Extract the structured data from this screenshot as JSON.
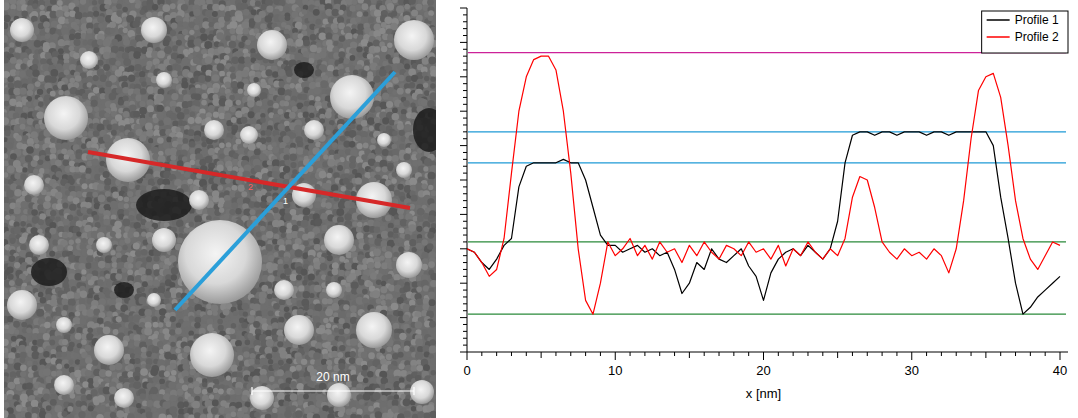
{
  "chart_data": {
    "type": "line",
    "x": [
      0,
      0.5,
      1,
      1.5,
      2,
      2.5,
      3,
      3.5,
      4,
      4.5,
      5,
      5.5,
      6,
      6.5,
      7,
      7.5,
      8,
      8.5,
      9,
      9.5,
      10,
      10.5,
      11,
      11.5,
      12,
      12.5,
      13,
      13.5,
      14,
      14.5,
      15,
      15.5,
      16,
      16.5,
      17,
      17.5,
      18,
      18.5,
      19,
      19.5,
      20,
      20.5,
      21,
      21.5,
      22,
      22.5,
      23,
      23.5,
      24,
      24.5,
      25,
      25.5,
      26,
      26.5,
      27,
      27.5,
      28,
      28.5,
      29,
      29.5,
      30,
      30.5,
      31,
      31.5,
      32,
      32.5,
      33,
      33.5,
      34,
      34.5,
      35,
      35.5,
      36,
      36.5,
      37,
      37.5,
      38,
      38.5,
      39,
      39.5,
      40
    ],
    "series": [
      {
        "name": "Profile 1",
        "color": "#000000",
        "values": [
          30,
          29,
          26,
          24,
          27,
          31,
          33,
          48,
          54,
          55,
          55,
          55,
          55,
          56,
          55,
          55,
          50,
          42,
          34,
          31,
          31,
          29,
          30,
          31,
          29,
          30,
          28,
          29,
          24,
          17,
          20,
          26,
          24,
          30,
          27,
          26,
          28,
          30,
          25,
          22,
          15,
          23,
          27,
          29,
          30,
          28,
          31,
          29,
          27,
          30,
          38,
          55,
          63,
          64,
          64,
          63,
          64,
          64,
          63,
          64,
          64,
          64,
          63,
          64,
          64,
          63,
          64,
          64,
          64,
          64,
          64,
          60,
          45,
          33,
          20,
          11,
          13,
          16,
          18,
          20,
          22
        ]
      },
      {
        "name": "Profile 2",
        "color": "#ff0000",
        "values": [
          30,
          29,
          26,
          22,
          24,
          33,
          52,
          70,
          80,
          85,
          86,
          86,
          82,
          70,
          52,
          30,
          15,
          11,
          20,
          32,
          28,
          30,
          33,
          28,
          31,
          27,
          32,
          29,
          30,
          26,
          31,
          28,
          32,
          29,
          27,
          31,
          30,
          28,
          32,
          29,
          30,
          27,
          31,
          25,
          30,
          28,
          32,
          29,
          27,
          30,
          28,
          33,
          45,
          51,
          50,
          42,
          32,
          29,
          27,
          30,
          28,
          29,
          27,
          30,
          28,
          23,
          30,
          44,
          62,
          76,
          80,
          81,
          74,
          60,
          44,
          33,
          27,
          24,
          28,
          32,
          31
        ]
      }
    ],
    "xlim": [
      0,
      40
    ],
    "xticks": [
      0,
      10,
      20,
      30,
      40
    ],
    "x_label": "x [nm]",
    "ylim": [
      0,
      100
    ],
    "yticks": [
      0,
      10,
      20,
      30,
      40,
      50,
      60,
      70,
      80,
      90,
      100
    ],
    "tick_labels": "x",
    "legend": "upper right",
    "reference_lines": [
      {
        "value": 87,
        "color": "#cc2299"
      },
      {
        "value": 64,
        "color": "#1e9ad6"
      },
      {
        "value": 55,
        "color": "#1e9ad6"
      },
      {
        "value": 32,
        "color": "#2a8a3a"
      },
      {
        "value": 11,
        "color": "#2a8a3a"
      }
    ]
  },
  "image": {
    "scale_bar_label": "20 nm",
    "profile_labels": [
      "1",
      "2"
    ]
  }
}
